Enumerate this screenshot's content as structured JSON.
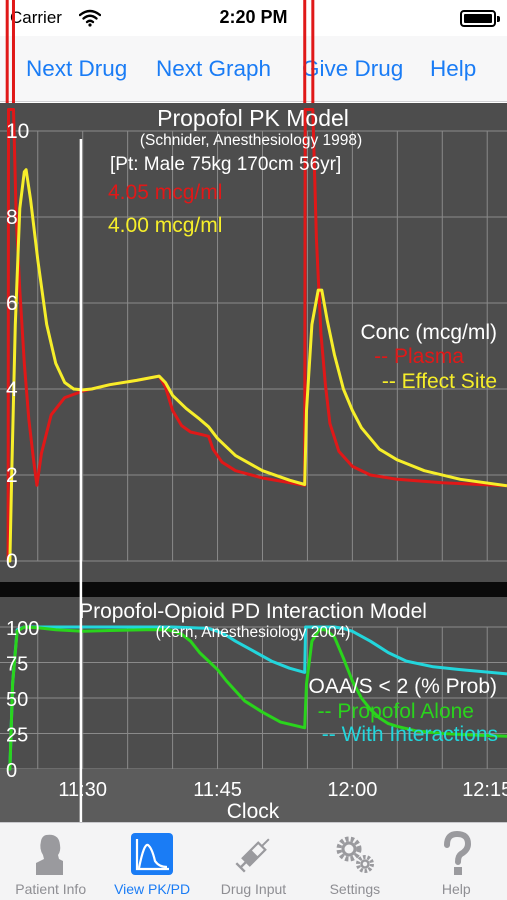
{
  "status": {
    "carrier": "Carrier",
    "time": "2:20 PM"
  },
  "nav": {
    "next_drug": "Next Drug",
    "next_graph": "Next Graph",
    "give_drug": "Give Drug",
    "help": "Help"
  },
  "colors": {
    "plasma": "#e01818",
    "effect_site": "#f6ee2a",
    "propofol_alone": "#2ad41c",
    "with_interactions": "#22d6dc",
    "panel_bg": "#4d4d4d",
    "accent": "#1a7cf5"
  },
  "chart_data": [
    {
      "type": "line",
      "title": "Propofol PK Model",
      "subtitle": "(Schnider, Anesthesiology 1998)",
      "patient": "[Pt: Male 75kg 170cm 56yr]",
      "readout_plasma": "4.05 mcg/ml",
      "readout_effect": "4.00 mcg/ml",
      "legend_title": "Conc (mcg/ml)",
      "legend_location": "right",
      "grid": true,
      "x_unit": "minutes since 11:00",
      "xlim": [
        20.8,
        77.2
      ],
      "ylim": [
        0,
        10
      ],
      "ytick_labels": [
        "0",
        "2",
        "4",
        "6",
        "8",
        "10"
      ],
      "cursor_x": 29.8,
      "series": [
        {
          "name": "-- Plasma",
          "points": [
            [
              21.6,
              0
            ],
            [
              21.7,
              0
            ],
            [
              21.75,
              10.5
            ],
            [
              22.3,
              10.5
            ],
            [
              22.6,
              8
            ],
            [
              23.0,
              6.3
            ],
            [
              23.5,
              4.6
            ],
            [
              24.0,
              3.3
            ],
            [
              24.5,
              2.4
            ],
            [
              24.9,
              1.76
            ],
            [
              25.4,
              2.5
            ],
            [
              26.5,
              3.4
            ],
            [
              28,
              3.8
            ],
            [
              30,
              3.95
            ],
            [
              33,
              4.1
            ],
            [
              36,
              4.2
            ],
            [
              38.5,
              4.3
            ],
            [
              39.2,
              4.05
            ],
            [
              40,
              3.5
            ],
            [
              41,
              3.15
            ],
            [
              42,
              3.0
            ],
            [
              43,
              2.95
            ],
            [
              44,
              2.9
            ],
            [
              44.5,
              2.6
            ],
            [
              45.5,
              2.3
            ],
            [
              47,
              2.1
            ],
            [
              50,
              1.93
            ],
            [
              53,
              1.82
            ],
            [
              54.7,
              1.76
            ],
            [
              54.75,
              10.5
            ],
            [
              55.6,
              10.5
            ],
            [
              56,
              7.5
            ],
            [
              56.5,
              5.3
            ],
            [
              57,
              4.1
            ],
            [
              57.5,
              3.2
            ],
            [
              58.5,
              2.55
            ],
            [
              60,
              2.2
            ],
            [
              62,
              2.0
            ],
            [
              65,
              1.9
            ],
            [
              70,
              1.82
            ],
            [
              77.2,
              1.75
            ]
          ]
        },
        {
          "name": "-- Effect Site",
          "points": [
            [
              21.6,
              0
            ],
            [
              21.9,
              0
            ],
            [
              22.1,
              2.0
            ],
            [
              22.5,
              5.5
            ],
            [
              23.0,
              8.2
            ],
            [
              23.5,
              9.05
            ],
            [
              23.7,
              9.1
            ],
            [
              24.2,
              8.4
            ],
            [
              25,
              7.0
            ],
            [
              26,
              5.5
            ],
            [
              27,
              4.6
            ],
            [
              28,
              4.15
            ],
            [
              29,
              4.0
            ],
            [
              30,
              3.98
            ],
            [
              31,
              4.0
            ],
            [
              33,
              4.1
            ],
            [
              36,
              4.2
            ],
            [
              38.5,
              4.3
            ],
            [
              39.2,
              4.15
            ],
            [
              40,
              3.85
            ],
            [
              41.5,
              3.55
            ],
            [
              43,
              3.3
            ],
            [
              44,
              3.12
            ],
            [
              45,
              2.85
            ],
            [
              47,
              2.45
            ],
            [
              50,
              2.1
            ],
            [
              53,
              1.88
            ],
            [
              54.7,
              1.78
            ],
            [
              54.9,
              3.5
            ],
            [
              55.5,
              5.5
            ],
            [
              56.2,
              6.3
            ],
            [
              56.6,
              6.3
            ],
            [
              57.2,
              5.6
            ],
            [
              58,
              4.8
            ],
            [
              59,
              4.0
            ],
            [
              60,
              3.5
            ],
            [
              61,
              3.1
            ],
            [
              63,
              2.6
            ],
            [
              65,
              2.35
            ],
            [
              68,
              2.1
            ],
            [
              72,
              1.9
            ],
            [
              77.2,
              1.75
            ]
          ]
        }
      ]
    },
    {
      "type": "line",
      "title": "Propofol-Opioid PD Interaction Model",
      "subtitle": "(Kern, Anesthesiology 2004)",
      "legend_title": "OAA/S < 2 (% Prob)",
      "legend_location": "right",
      "grid": true,
      "xlabel": "Clock",
      "x_unit": "minutes since 11:00",
      "xlim": [
        20.8,
        77.2
      ],
      "ylim": [
        0,
        100
      ],
      "ytick_labels": [
        "0",
        "25",
        "50",
        "75",
        "100"
      ],
      "xtick_labels": [
        {
          "x": 30,
          "label": "11:30"
        },
        {
          "x": 45,
          "label": "11:45"
        },
        {
          "x": 60,
          "label": "12:00"
        },
        {
          "x": 75,
          "label": "12:15"
        }
      ],
      "series": [
        {
          "name": "-- Propofol Alone",
          "points": [
            [
              21.6,
              0
            ],
            [
              21.9,
              0
            ],
            [
              22.2,
              60
            ],
            [
              22.7,
              97
            ],
            [
              23.5,
              100
            ],
            [
              25,
              99.5
            ],
            [
              27,
              98
            ],
            [
              30,
              97
            ],
            [
              33,
              97.5
            ],
            [
              37,
              98
            ],
            [
              39.5,
              98
            ],
            [
              41,
              95
            ],
            [
              42,
              90
            ],
            [
              43,
              82
            ],
            [
              44,
              76
            ],
            [
              45,
              70
            ],
            [
              46,
              62
            ],
            [
              47,
              55
            ],
            [
              48,
              48
            ],
            [
              50,
              40
            ],
            [
              52,
              33
            ],
            [
              54.7,
              29
            ],
            [
              54.9,
              60
            ],
            [
              55.5,
              90
            ],
            [
              56.3,
              98
            ],
            [
              57,
              98
            ],
            [
              58,
              93
            ],
            [
              59,
              78
            ],
            [
              60,
              62
            ],
            [
              61,
              50
            ],
            [
              62,
              42
            ],
            [
              63,
              36
            ],
            [
              64,
              32
            ],
            [
              65,
              30
            ],
            [
              67,
              27
            ],
            [
              70,
              25
            ],
            [
              73,
              24
            ],
            [
              77.2,
              23
            ]
          ]
        },
        {
          "name": "-- With Interactions",
          "points": [
            [
              21.6,
              0
            ],
            [
              21.9,
              0
            ],
            [
              22.2,
              60
            ],
            [
              22.7,
              98
            ],
            [
              23.5,
              100
            ],
            [
              30,
              100
            ],
            [
              40,
              100
            ],
            [
              44,
              99
            ],
            [
              45,
              97
            ],
            [
              46,
              94
            ],
            [
              47,
              90
            ],
            [
              49,
              83
            ],
            [
              51,
              76
            ],
            [
              53,
              71
            ],
            [
              54.7,
              68
            ],
            [
              54.8,
              100
            ],
            [
              58,
              100
            ],
            [
              59,
              99
            ],
            [
              60,
              97
            ],
            [
              62,
              90
            ],
            [
              64,
              82
            ],
            [
              66,
              76
            ],
            [
              69,
              72
            ],
            [
              72,
              70
            ],
            [
              77.2,
              67
            ]
          ]
        }
      ]
    }
  ],
  "tabs": [
    {
      "label": "Patient Info",
      "icon": "patient-icon",
      "active": false
    },
    {
      "label": "View PK/PD",
      "icon": "chart-icon",
      "active": true
    },
    {
      "label": "Drug Input",
      "icon": "syringe-icon",
      "active": false
    },
    {
      "label": "Settings",
      "icon": "gear-icon",
      "active": false
    },
    {
      "label": "Help",
      "icon": "question-icon",
      "active": false
    }
  ]
}
